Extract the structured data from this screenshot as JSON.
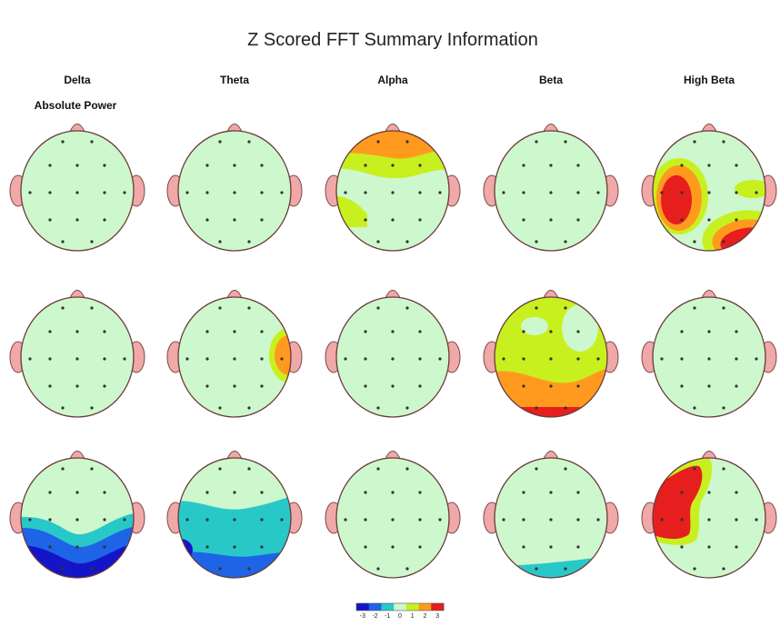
{
  "chart_data": {
    "type": "heatmap",
    "title": "Z Scored FFT Summary Information",
    "row_label": "Absolute Power",
    "columns": [
      "Delta",
      "Theta",
      "Alpha",
      "Beta",
      "High Beta"
    ],
    "rows": 3,
    "colorbar": {
      "range": [
        -3,
        3
      ],
      "tick_labels": [
        "-3",
        "-2",
        "-1",
        "0",
        "1",
        "2",
        "3"
      ],
      "colors": [
        "#1414c8",
        "#1e64e6",
        "#28c8c8",
        "#cdf7cd",
        "#c8f01e",
        "#ff9a1e",
        "#e61e1e"
      ]
    },
    "electrode_grid": "4x4 plus midline",
    "maps": [
      {
        "row": 1,
        "column": "Delta",
        "pattern": "normal"
      },
      {
        "row": 1,
        "column": "Theta",
        "pattern": "normal"
      },
      {
        "row": 1,
        "column": "Alpha",
        "pattern": "frontal elevated +1 to +2"
      },
      {
        "row": 1,
        "column": "Beta",
        "pattern": "normal"
      },
      {
        "row": 1,
        "column": "High Beta",
        "pattern": "left and right-posterior elevated +2 to +3"
      },
      {
        "row": 2,
        "column": "Delta",
        "pattern": "normal"
      },
      {
        "row": 2,
        "column": "Theta",
        "pattern": "right temporal elevated +2"
      },
      {
        "row": 2,
        "column": "Alpha",
        "pattern": "normal"
      },
      {
        "row": 2,
        "column": "Beta",
        "pattern": "global elevated +1, posterior +2"
      },
      {
        "row": 2,
        "column": "High Beta",
        "pattern": "normal"
      },
      {
        "row": 3,
        "column": "Delta",
        "pattern": "posterior reduced -1 to -3"
      },
      {
        "row": 3,
        "column": "Theta",
        "pattern": "posterior reduced -1 to -3"
      },
      {
        "row": 3,
        "column": "Alpha",
        "pattern": "normal"
      },
      {
        "row": 3,
        "column": "Beta",
        "pattern": "posterior reduced -1"
      },
      {
        "row": 3,
        "column": "High Beta",
        "pattern": "left frontal elevated +2 to +3"
      }
    ]
  }
}
